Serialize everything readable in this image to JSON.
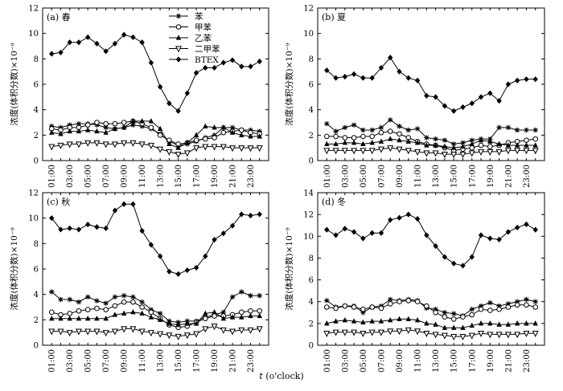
{
  "figure": {
    "xlabel_italic": "t",
    "xlabel_rest": " (o'clock)"
  },
  "chart_data": [
    {
      "type": "line",
      "panel_label": "(a) 春",
      "ylabel": "浓度(体积分数)×10⁻⁹",
      "xlabel": "t (o'clock)",
      "ylim": [
        0,
        12
      ],
      "yticks": [
        0,
        2,
        4,
        6,
        8,
        10,
        12
      ],
      "x": [
        0,
        1,
        2,
        3,
        4,
        5,
        6,
        7,
        8,
        9,
        10,
        11,
        12,
        13,
        14,
        15,
        16,
        17,
        18,
        19,
        20,
        21,
        22,
        23
      ],
      "xticks": [
        "01:00",
        "03:00",
        "05:00",
        "07:00",
        "09:00",
        "11:00",
        "13:00",
        "15:00",
        "17:00",
        "19:00",
        "21:00",
        "23:00"
      ],
      "legend_position": "top-right",
      "series": [
        {
          "name": "苯",
          "marker": "star",
          "values": [
            2.7,
            2.6,
            2.8,
            2.9,
            2.9,
            2.8,
            2.6,
            2.5,
            2.6,
            2.8,
            2.7,
            2.5,
            2.1,
            1.5,
            1.2,
            1.3,
            1.5,
            1.8,
            2.0,
            2.6,
            2.6,
            2.4,
            2.4,
            2.3
          ]
        },
        {
          "name": "甲苯",
          "marker": "circle",
          "values": [
            2.5,
            2.4,
            2.6,
            2.6,
            2.8,
            3.0,
            2.9,
            2.9,
            3.0,
            3.1,
            2.9,
            2.6,
            2.0,
            1.6,
            1.3,
            1.4,
            1.6,
            1.7,
            1.8,
            2.2,
            2.3,
            2.4,
            2.2,
            2.1
          ]
        },
        {
          "name": "乙苯",
          "marker": "triangle-up",
          "values": [
            2.2,
            2.1,
            2.3,
            2.3,
            2.4,
            2.3,
            2.2,
            2.5,
            2.6,
            3.1,
            3.1,
            3.1,
            2.5,
            1.3,
            1.0,
            1.4,
            2.0,
            2.7,
            2.6,
            2.6,
            2.2,
            2.0,
            1.9,
            1.9
          ]
        },
        {
          "name": "二甲苯",
          "marker": "triangle-down",
          "values": [
            1.1,
            1.2,
            1.3,
            1.3,
            1.4,
            1.4,
            1.3,
            1.3,
            1.4,
            1.4,
            1.3,
            1.2,
            0.9,
            0.7,
            0.5,
            0.6,
            1.0,
            1.1,
            1.1,
            1.1,
            1.0,
            1.0,
            1.0,
            1.0
          ]
        },
        {
          "name": "BTEX",
          "marker": "diamond",
          "values": [
            8.4,
            8.5,
            9.3,
            9.3,
            9.7,
            9.2,
            8.6,
            9.2,
            9.9,
            9.7,
            9.3,
            7.7,
            5.8,
            4.5,
            3.9,
            5.3,
            6.9,
            7.3,
            7.3,
            7.7,
            7.9,
            7.4,
            7.4,
            7.8
          ]
        }
      ]
    },
    {
      "type": "line",
      "panel_label": "(b) 夏",
      "ylabel": "浓度(体积分数)×10⁻⁹",
      "xlabel": "t (o'clock)",
      "ylim": [
        0,
        12
      ],
      "yticks": [
        0,
        2,
        4,
        6,
        8,
        10,
        12
      ],
      "x": [
        0,
        1,
        2,
        3,
        4,
        5,
        6,
        7,
        8,
        9,
        10,
        11,
        12,
        13,
        14,
        15,
        16,
        17,
        18,
        19,
        20,
        21,
        22,
        23
      ],
      "xticks": [
        "01:00",
        "03:00",
        "05:00",
        "07:00",
        "09:00",
        "11:00",
        "13:00",
        "15:00",
        "17:00",
        "19:00",
        "21:00",
        "23:00"
      ],
      "series": [
        {
          "name": "苯",
          "marker": "star",
          "values": [
            2.9,
            2.3,
            2.6,
            2.8,
            2.4,
            2.4,
            2.6,
            3.2,
            2.7,
            2.4,
            2.5,
            1.8,
            1.7,
            1.6,
            1.3,
            1.4,
            1.6,
            1.7,
            1.7,
            2.6,
            2.6,
            2.4,
            2.4,
            2.4
          ]
        },
        {
          "name": "甲苯",
          "marker": "circle",
          "values": [
            1.9,
            1.9,
            1.8,
            1.8,
            1.9,
            1.9,
            2.2,
            2.3,
            2.1,
            1.8,
            1.5,
            1.3,
            1.2,
            1.0,
            0.8,
            0.9,
            1.0,
            1.2,
            1.1,
            1.2,
            1.4,
            1.5,
            1.6,
            1.7
          ]
        },
        {
          "name": "乙苯",
          "marker": "triangle-up",
          "values": [
            1.3,
            1.3,
            1.4,
            1.4,
            1.3,
            1.4,
            1.5,
            1.7,
            1.6,
            1.5,
            1.4,
            1.2,
            1.2,
            1.1,
            1.0,
            1.1,
            1.3,
            1.6,
            1.5,
            1.3,
            1.2,
            1.2,
            1.2,
            1.2
          ]
        },
        {
          "name": "二甲苯",
          "marker": "triangle-down",
          "values": [
            0.8,
            0.8,
            0.8,
            0.8,
            0.8,
            0.8,
            0.9,
            1.0,
            0.9,
            0.8,
            0.7,
            0.6,
            0.6,
            0.5,
            0.5,
            0.5,
            0.6,
            0.7,
            0.7,
            0.7,
            0.8,
            0.8,
            0.8,
            0.8
          ]
        },
        {
          "name": "BTEX",
          "marker": "diamond",
          "values": [
            7.1,
            6.5,
            6.6,
            6.8,
            6.5,
            6.5,
            7.3,
            8.1,
            7.0,
            6.5,
            6.3,
            5.1,
            5.0,
            4.3,
            3.9,
            4.2,
            4.5,
            5.0,
            5.3,
            4.7,
            6.0,
            6.3,
            6.4,
            6.4
          ]
        }
      ]
    },
    {
      "type": "line",
      "panel_label": "(c) 秋",
      "ylabel": "浓度(体积分数)×10⁻⁹",
      "xlabel": "t (o'clock)",
      "ylim": [
        0,
        12
      ],
      "yticks": [
        0,
        2,
        4,
        6,
        8,
        10,
        12
      ],
      "x": [
        0,
        1,
        2,
        3,
        4,
        5,
        6,
        7,
        8,
        9,
        10,
        11,
        12,
        13,
        14,
        15,
        16,
        17,
        18,
        19,
        20,
        21,
        22,
        23
      ],
      "xticks": [
        "01:00",
        "03:00",
        "05:00",
        "07:00",
        "09:00",
        "11:00",
        "13:00",
        "15:00",
        "17:00",
        "19:00",
        "21:00",
        "23:00"
      ],
      "series": [
        {
          "name": "苯",
          "marker": "star",
          "values": [
            4.2,
            3.6,
            3.6,
            3.4,
            3.8,
            3.5,
            3.3,
            3.8,
            3.9,
            3.8,
            3.4,
            2.8,
            2.5,
            1.9,
            1.8,
            1.9,
            1.9,
            2.2,
            2.4,
            2.6,
            3.8,
            4.2,
            3.9,
            3.9
          ]
        },
        {
          "name": "甲苯",
          "marker": "circle",
          "values": [
            2.6,
            2.4,
            2.5,
            2.7,
            2.8,
            2.9,
            2.8,
            3.1,
            3.4,
            3.4,
            3.0,
            2.6,
            2.1,
            1.6,
            1.4,
            1.5,
            1.8,
            2.1,
            2.3,
            2.3,
            2.4,
            2.6,
            2.7,
            2.7
          ]
        },
        {
          "name": "乙苯",
          "marker": "triangle-up",
          "values": [
            2.1,
            2.1,
            2.1,
            2.1,
            2.1,
            2.1,
            2.1,
            2.4,
            2.5,
            2.6,
            2.5,
            2.2,
            2.0,
            1.7,
            1.6,
            1.7,
            1.7,
            2.5,
            2.6,
            2.1,
            2.2,
            2.2,
            2.3,
            2.3
          ]
        },
        {
          "name": "二甲苯",
          "marker": "triangle-down",
          "values": [
            1.1,
            1.1,
            1.0,
            1.1,
            1.1,
            1.1,
            1.0,
            1.1,
            1.3,
            1.3,
            1.1,
            1.0,
            0.9,
            0.8,
            0.7,
            0.8,
            0.9,
            1.3,
            1.5,
            1.2,
            1.1,
            1.2,
            1.2,
            1.3
          ]
        },
        {
          "name": "BTEX",
          "marker": "diamond",
          "values": [
            10.0,
            9.1,
            9.2,
            9.1,
            9.5,
            9.3,
            9.2,
            10.6,
            11.1,
            11.1,
            9.0,
            7.9,
            7.0,
            5.8,
            5.6,
            5.9,
            6.1,
            7.0,
            8.3,
            8.8,
            9.4,
            10.3,
            10.2,
            10.3
          ]
        }
      ]
    },
    {
      "type": "line",
      "panel_label": "(d) 冬",
      "ylabel": "浓度(体积分数)×10⁻⁹",
      "xlabel": "t (o'clock)",
      "ylim": [
        0,
        14
      ],
      "yticks": [
        0,
        2,
        4,
        6,
        8,
        10,
        12,
        14
      ],
      "x": [
        0,
        1,
        2,
        3,
        4,
        5,
        6,
        7,
        8,
        9,
        10,
        11,
        12,
        13,
        14,
        15,
        16,
        17,
        18,
        19,
        20,
        21,
        22,
        23
      ],
      "xticks": [
        "01:00",
        "03:00",
        "05:00",
        "07:00",
        "09:00",
        "11:00",
        "13:00",
        "15:00",
        "17:00",
        "19:00",
        "21:00",
        "23:00"
      ],
      "series": [
        {
          "name": "苯",
          "marker": "star",
          "values": [
            4.1,
            3.5,
            3.6,
            3.6,
            3.0,
            3.5,
            3.6,
            4.2,
            4.1,
            4.2,
            4.1,
            3.4,
            3.3,
            3.0,
            2.9,
            2.7,
            3.3,
            3.6,
            3.9,
            3.6,
            3.8,
            4.0,
            4.2,
            4.0
          ]
        },
        {
          "name": "甲苯",
          "marker": "circle",
          "values": [
            3.5,
            3.4,
            3.6,
            3.5,
            3.3,
            3.5,
            3.4,
            3.8,
            4.0,
            4.1,
            4.0,
            3.6,
            3.0,
            2.6,
            2.4,
            2.6,
            2.8,
            3.3,
            3.2,
            3.3,
            3.5,
            3.7,
            3.7,
            3.5
          ]
        },
        {
          "name": "乙苯",
          "marker": "triangle-up",
          "values": [
            2.0,
            2.2,
            2.3,
            2.2,
            2.1,
            2.2,
            2.2,
            2.3,
            2.4,
            2.4,
            2.3,
            2.0,
            1.9,
            1.6,
            1.6,
            1.6,
            1.8,
            2.0,
            2.0,
            1.9,
            1.9,
            2.0,
            2.0,
            2.0
          ]
        },
        {
          "name": "二甲苯",
          "marker": "triangle-down",
          "values": [
            1.1,
            1.2,
            1.2,
            1.2,
            1.1,
            1.2,
            1.2,
            1.3,
            1.3,
            1.4,
            1.3,
            1.1,
            1.0,
            0.9,
            0.8,
            0.8,
            0.9,
            1.1,
            1.0,
            1.0,
            1.0,
            1.0,
            1.1,
            1.1
          ]
        },
        {
          "name": "BTEX",
          "marker": "diamond",
          "values": [
            10.6,
            10.1,
            10.7,
            10.4,
            9.8,
            10.3,
            10.3,
            11.5,
            11.7,
            12.0,
            11.6,
            10.1,
            9.1,
            8.1,
            7.5,
            7.3,
            8.1,
            10.1,
            9.8,
            9.7,
            10.4,
            10.8,
            11.1,
            10.6
          ]
        }
      ]
    }
  ]
}
